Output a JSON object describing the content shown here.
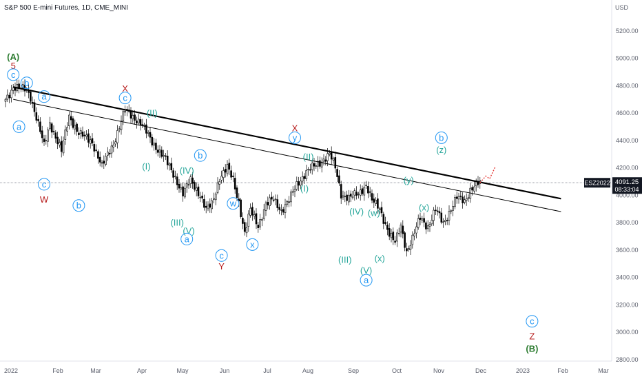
{
  "chart_data": {
    "type": "candlestick",
    "title": "S&P 500 E-mini Futures, 1D, CME_MINI",
    "currency_label": "USD",
    "symbol_badge": "ESZ2022",
    "last_price": "4091.25",
    "countdown": "08:33:04",
    "ylim": [
      2750,
      5400
    ],
    "y_ticks": [
      "5200.00",
      "5000.00",
      "4800.00",
      "4600.00",
      "4400.00",
      "4200.00",
      "4000.00",
      "3800.00",
      "3600.00",
      "3400.00",
      "3200.00",
      "3000.00",
      "2800.00"
    ],
    "x_ticks": [
      "2022",
      "Feb",
      "Mar",
      "Apr",
      "May",
      "Jun",
      "Jul",
      "Aug",
      "Sep",
      "Oct",
      "Nov",
      "Dec",
      "2023",
      "Feb",
      "Mar"
    ],
    "price_anchors": [
      [
        0,
        4700
      ],
      [
        4,
        4790
      ],
      [
        11,
        4770
      ],
      [
        13,
        4720
      ],
      [
        20,
        4360
      ],
      [
        23,
        4530
      ],
      [
        29,
        4320
      ],
      [
        33,
        4580
      ],
      [
        38,
        4450
      ],
      [
        45,
        4390
      ],
      [
        50,
        4210
      ],
      [
        56,
        4380
      ],
      [
        62,
        4620
      ],
      [
        70,
        4530
      ],
      [
        76,
        4390
      ],
      [
        82,
        4280
      ],
      [
        88,
        4130
      ],
      [
        92,
        4010
      ],
      [
        96,
        4110
      ],
      [
        101,
        4000
      ],
      [
        104,
        3890
      ],
      [
        107,
        3935
      ],
      [
        111,
        4130
      ],
      [
        115,
        4200
      ],
      [
        118,
        4110
      ],
      [
        121,
        3950
      ],
      [
        124,
        3720
      ],
      [
        127,
        3890
      ],
      [
        131,
        3780
      ],
      [
        135,
        3930
      ],
      [
        139,
        3970
      ],
      [
        143,
        3890
      ],
      [
        147,
        3960
      ],
      [
        151,
        4080
      ],
      [
        156,
        4170
      ],
      [
        163,
        4240
      ],
      [
        168,
        4300
      ],
      [
        171,
        4200
      ],
      [
        174,
        4010
      ],
      [
        178,
        3980
      ],
      [
        183,
        4010
      ],
      [
        187,
        4080
      ],
      [
        190,
        3960
      ],
      [
        194,
        3900
      ],
      [
        199,
        3720
      ],
      [
        202,
        3650
      ],
      [
        205,
        3780
      ],
      [
        208,
        3590
      ],
      [
        211,
        3680
      ],
      [
        215,
        3840
      ],
      [
        219,
        3770
      ],
      [
        223,
        3890
      ],
      [
        227,
        3800
      ],
      [
        231,
        3900
      ],
      [
        234,
        3980
      ],
      [
        238,
        3960
      ],
      [
        241,
        4040
      ],
      [
        244,
        4075
      ],
      [
        246,
        4091
      ]
    ],
    "trendlines": [
      {
        "style": "thick",
        "from": [
          4,
          4790
        ],
        "to": [
          288,
          3975
        ]
      },
      {
        "style": "thin",
        "from": [
          4,
          4700
        ],
        "to": [
          288,
          3880
        ]
      }
    ],
    "current_price_line": 4091.25,
    "projection": [
      [
        246,
        4091
      ],
      [
        249,
        4140
      ],
      [
        251,
        4120
      ],
      [
        254,
        4210
      ]
    ],
    "annotations": [
      {
        "text": "(A)",
        "color": "#2e7d32",
        "x": 4,
        "y": 5010
      },
      {
        "text": "5",
        "color": "#b71c1c",
        "x": 4,
        "y": 4945
      },
      {
        "text": "c",
        "color": "#2196f3",
        "circle": true,
        "x": 4,
        "y": 4880
      },
      {
        "text": "b",
        "color": "#2196f3",
        "circle": true,
        "x": 11,
        "y": 4820
      },
      {
        "text": "a",
        "color": "#2196f3",
        "circle": true,
        "x": 20,
        "y": 4720
      },
      {
        "text": "a",
        "color": "#2196f3",
        "circle": true,
        "x": 7,
        "y": 4500
      },
      {
        "text": "c",
        "color": "#2196f3",
        "circle": true,
        "x": 20,
        "y": 4080
      },
      {
        "text": "W",
        "color": "#b71c1c",
        "x": 20,
        "y": 3970
      },
      {
        "text": "b",
        "color": "#2196f3",
        "circle": true,
        "x": 38,
        "y": 3925
      },
      {
        "text": "X",
        "color": "#b71c1c",
        "x": 62,
        "y": 4780
      },
      {
        "text": "c",
        "color": "#2196f3",
        "circle": true,
        "x": 62,
        "y": 4710
      },
      {
        "text": "(II)",
        "color": "#26a69a",
        "x": 76,
        "y": 4600
      },
      {
        "text": "(I)",
        "color": "#26a69a",
        "x": 73,
        "y": 4210
      },
      {
        "text": "(IV)",
        "color": "#26a69a",
        "x": 94,
        "y": 4180
      },
      {
        "text": "b",
        "color": "#2196f3",
        "circle": true,
        "x": 101,
        "y": 4290
      },
      {
        "text": "(III)",
        "color": "#26a69a",
        "x": 89,
        "y": 3800
      },
      {
        "text": "(V)",
        "color": "#26a69a",
        "x": 95,
        "y": 3740
      },
      {
        "text": "a",
        "color": "#2196f3",
        "circle": true,
        "x": 94,
        "y": 3680
      },
      {
        "text": "w",
        "color": "#2196f3",
        "circle": true,
        "x": 118,
        "y": 3940
      },
      {
        "text": "c",
        "color": "#2196f3",
        "circle": true,
        "x": 112,
        "y": 3560
      },
      {
        "text": "Y",
        "color": "#b71c1c",
        "x": 112,
        "y": 3480
      },
      {
        "text": "x",
        "color": "#2196f3",
        "circle": true,
        "x": 128,
        "y": 3640
      },
      {
        "text": "X",
        "color": "#b71c1c",
        "x": 150,
        "y": 4490
      },
      {
        "text": "y",
        "color": "#2196f3",
        "circle": true,
        "x": 150,
        "y": 4420
      },
      {
        "text": "(II)",
        "color": "#26a69a",
        "x": 157,
        "y": 4280
      },
      {
        "text": "(I)",
        "color": "#26a69a",
        "x": 155,
        "y": 4050
      },
      {
        "text": "(IV)",
        "color": "#26a69a",
        "x": 182,
        "y": 3880
      },
      {
        "text": "(w)",
        "color": "#26a69a",
        "x": 191,
        "y": 3870
      },
      {
        "text": "(III)",
        "color": "#26a69a",
        "x": 176,
        "y": 3530
      },
      {
        "text": "(x)",
        "color": "#26a69a",
        "x": 194,
        "y": 3540
      },
      {
        "text": "(V)",
        "color": "#26a69a",
        "x": 187,
        "y": 3450
      },
      {
        "text": "a",
        "color": "#2196f3",
        "circle": true,
        "x": 187,
        "y": 3380
      },
      {
        "text": "(y)",
        "color": "#26a69a",
        "x": 209,
        "y": 4110
      },
      {
        "text": "(x)",
        "color": "#26a69a",
        "x": 217,
        "y": 3910
      },
      {
        "text": "b",
        "color": "#2196f3",
        "circle": true,
        "x": 226,
        "y": 4420
      },
      {
        "text": "(z)",
        "color": "#26a69a",
        "x": 226,
        "y": 4330
      },
      {
        "text": "c",
        "color": "#2196f3",
        "circle": true,
        "x": 273,
        "y": 3080
      },
      {
        "text": "Z",
        "color": "#b71c1c",
        "x": 273,
        "y": 2970
      },
      {
        "text": "(B)",
        "color": "#2e7d32",
        "x": 273,
        "y": 2880
      }
    ],
    "grid": false
  }
}
